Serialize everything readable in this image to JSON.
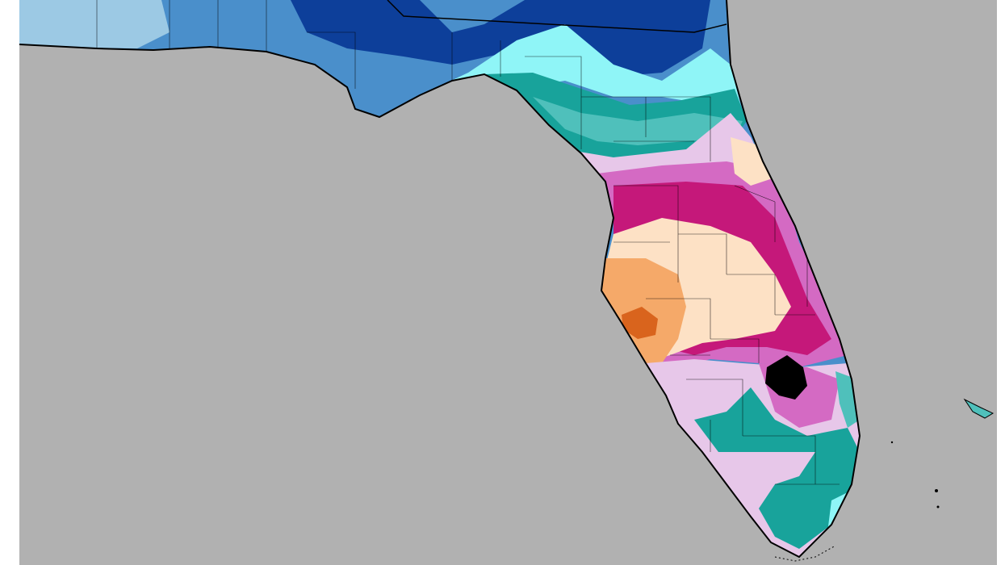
{
  "map": {
    "colors": {
      "water": "#b1b1b1",
      "border": "#000000",
      "band_light_blue": "#9cc9e4",
      "band_blue": "#4a8fcb",
      "band_dark_blue": "#0d3f9a",
      "band_cyan": "#8ff5f7",
      "band_teal_light": "#4fc0bb",
      "band_teal": "#18a39b",
      "band_lavender": "#e7c7e9",
      "band_pink": "#d46ac3",
      "band_magenta": "#c5187a",
      "band_peach": "#fde1c5",
      "band_orange": "#f5a969",
      "band_dark_orange": "#d9641d",
      "lake_black": "#000000"
    }
  }
}
